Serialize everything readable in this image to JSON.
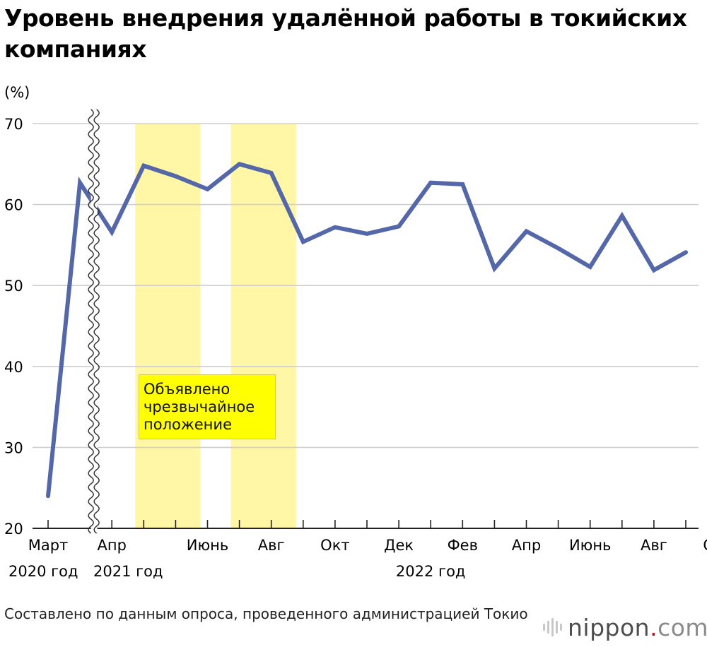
{
  "title": "Уровень внедрения удалённой работы в токийских компаниях",
  "source": "Составлено по данным опроса, проведенного администрацией Токио",
  "logo": {
    "main": "nippon",
    "dot": ".",
    "tld": "com"
  },
  "chart_data": {
    "type": "line",
    "title": "Уровень внедрения удалённой работы в токийских компаниях",
    "ylabel": "(%)",
    "ylim": [
      20,
      70
    ],
    "yticks": [
      20,
      30,
      40,
      50,
      60,
      70
    ],
    "grid": true,
    "axis_break_after_index": 1,
    "x_labels": [
      {
        "index": 0,
        "label": "Март"
      },
      {
        "index": 2,
        "label": "Апр"
      },
      {
        "index": 5,
        "label": "Июнь"
      },
      {
        "index": 7,
        "label": "Авг"
      },
      {
        "index": 9,
        "label": "Окт"
      },
      {
        "index": 11,
        "label": "Дек"
      },
      {
        "index": 13,
        "label": "Фев"
      },
      {
        "index": 15,
        "label": "Апр"
      },
      {
        "index": 17,
        "label": "Июнь"
      },
      {
        "index": 19,
        "label": "Авг"
      },
      {
        "index": 21,
        "label": "Окт"
      }
    ],
    "year_labels": [
      {
        "index": 0,
        "label": "2020 год"
      },
      {
        "index": 2,
        "label": "2021 год"
      },
      {
        "index": 12,
        "label": "2022 год"
      }
    ],
    "series": [
      {
        "color": "#5467a8",
        "values": [
          24.0,
          62.7,
          56.6,
          64.8,
          63.5,
          61.9,
          65.0,
          63.9,
          55.4,
          57.2,
          56.4,
          57.3,
          62.7,
          62.5,
          52.1,
          56.7,
          54.6,
          52.3,
          58.6,
          51.9,
          54.1
        ]
      }
    ],
    "shaded_periods": [
      {
        "from_index": 3,
        "to_index": 5,
        "color": "#fff6a6"
      },
      {
        "from_index": 6,
        "to_index": 8,
        "color": "#fff6a6"
      }
    ],
    "annotation": "Объявлено чрезвычайное положение"
  }
}
